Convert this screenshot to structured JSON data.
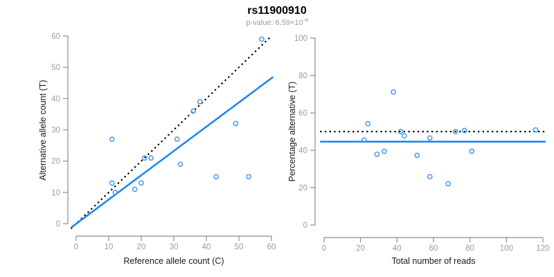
{
  "header": {
    "title": "rs11900910",
    "subtitle_base": "p-value: 6.59×10",
    "subtitle_exponent": "-4"
  },
  "colors": {
    "fit_line_blue": "#1e87ee",
    "point_blue": "#4696ec",
    "identity_black": "#000000",
    "axis_gray": "#8c8c8c",
    "tick_label_gray": "#9b9b9b",
    "axis_title_color": "#1a1a1a"
  },
  "chart_data": [
    {
      "type": "scatter",
      "name": "allele-counts",
      "xlabel": "Reference allele count (C)",
      "ylabel": "Alternative allele count (T)",
      "xlim": [
        0,
        60
      ],
      "ylim": [
        0,
        60
      ],
      "xticks": [
        0,
        10,
        20,
        30,
        40,
        50,
        60
      ],
      "yticks": [
        0,
        10,
        20,
        30,
        40,
        50,
        60
      ],
      "grid": false,
      "legend": null,
      "points": [
        [
          12,
          10
        ],
        [
          11,
          13
        ],
        [
          18,
          11
        ],
        [
          20,
          13
        ],
        [
          11,
          27
        ],
        [
          21,
          21
        ],
        [
          23,
          21
        ],
        [
          32,
          19
        ],
        [
          31,
          27
        ],
        [
          43,
          15
        ],
        [
          53,
          15
        ],
        [
          36,
          36
        ],
        [
          38,
          39
        ],
        [
          49,
          32
        ],
        [
          57,
          59
        ]
      ],
      "lines": [
        {
          "name": "identity-line",
          "style": "dotted",
          "color": "identity_black",
          "x1": -1.6,
          "y1": -1.6,
          "x2": 59.7,
          "y2": 59.7,
          "meaning": "y = x (expected 50/50 ratio)"
        },
        {
          "name": "fit-line",
          "style": "solid",
          "color": "fit_line_blue",
          "x1": -1.5,
          "y1": -1.2,
          "x2": 60.5,
          "y2": 46.9,
          "meaning": "observed fit, slope ~0.78"
        }
      ]
    },
    {
      "type": "scatter",
      "name": "percentage-vs-coverage",
      "xlabel": "Total number of reads",
      "ylabel": "Percentage alternative (T)",
      "xlim": [
        0,
        120
      ],
      "ylim": [
        0,
        100
      ],
      "xticks": [
        0,
        20,
        40,
        60,
        80,
        100,
        120
      ],
      "yticks": [
        0,
        20,
        40,
        60,
        80,
        100
      ],
      "grid": false,
      "legend": null,
      "points": [
        [
          22,
          45.5
        ],
        [
          24,
          54.2
        ],
        [
          29,
          37.9
        ],
        [
          33,
          39.4
        ],
        [
          38,
          71.1
        ],
        [
          42,
          50.0
        ],
        [
          44,
          47.7
        ],
        [
          51,
          37.3
        ],
        [
          58,
          46.6
        ],
        [
          58,
          25.9
        ],
        [
          68,
          22.1
        ],
        [
          72,
          50.0
        ],
        [
          77,
          50.6
        ],
        [
          81,
          39.5
        ],
        [
          116,
          50.9
        ]
      ],
      "lines": [
        {
          "name": "expected-line",
          "style": "dotted",
          "color": "identity_black",
          "x1": -2.2,
          "y1": 50,
          "x2": 121.5,
          "y2": 50,
          "meaning": "expected 50%"
        },
        {
          "name": "mean-line",
          "style": "solid",
          "color": "fit_line_blue",
          "x1": -2.2,
          "y1": 44.6,
          "x2": 121.5,
          "y2": 44.6,
          "meaning": "observed mean ~44.6%"
        }
      ]
    }
  ]
}
